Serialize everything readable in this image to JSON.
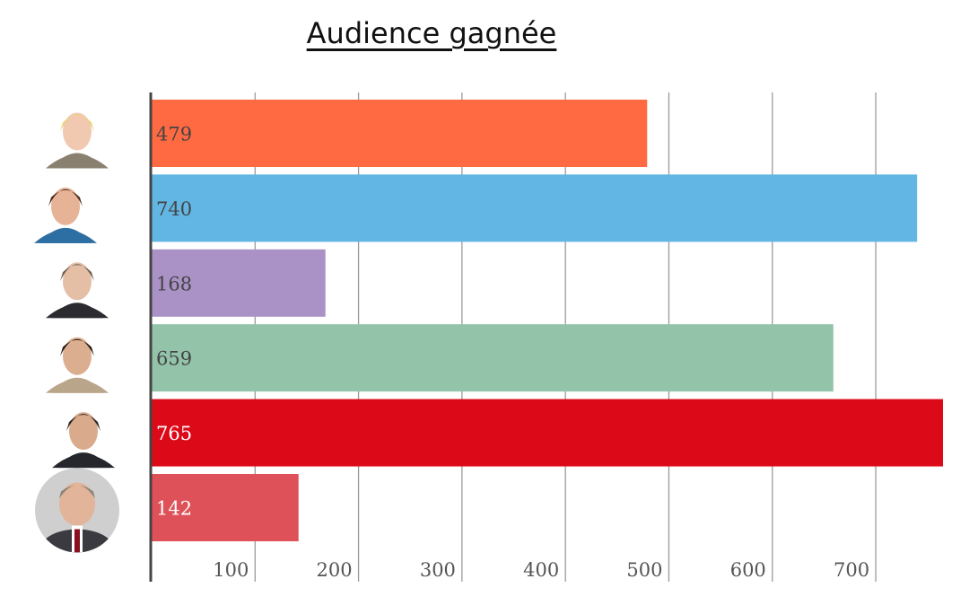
{
  "chart_data": {
    "type": "bar",
    "orientation": "horizontal",
    "title": "Audience gagnée",
    "xlabel": "",
    "ylabel": "",
    "xlim": [
      0,
      765
    ],
    "xticks": [
      100,
      200,
      300,
      400,
      500,
      600,
      700
    ],
    "grid": true,
    "legend": "none",
    "categories": [
      "",
      "",
      "",
      "",
      "",
      ""
    ],
    "values": [
      479,
      740,
      168,
      659,
      765,
      142
    ],
    "colors": [
      "#ff6a42",
      "#62b6e4",
      "#aa91c6",
      "#93c3a9",
      "#dc0a19",
      "#de5159"
    ],
    "label_colors": [
      "#444444",
      "#444444",
      "#444444",
      "#444444",
      "#ffffff",
      "#ffffff"
    ]
  },
  "avatars": [
    {
      "name": "avatar-1",
      "shirt": "#8a8070",
      "hair": "#e9d27a",
      "skin": "#f1c9b0",
      "bg": "#ffffff",
      "round": false
    },
    {
      "name": "avatar-2",
      "shirt": "#2e6fa3",
      "hair": "#4a2a1a",
      "skin": "#e7b397",
      "bg": "#ffffff",
      "round": false
    },
    {
      "name": "avatar-3",
      "shirt": "#2b2b30",
      "hair": "#6b5f52",
      "skin": "#e4bfa6",
      "bg": "#ffffff",
      "round": false
    },
    {
      "name": "avatar-4",
      "shirt": "#b9a589",
      "hair": "#1c1410",
      "skin": "#dcae90",
      "bg": "#ffffff",
      "round": false
    },
    {
      "name": "avatar-5",
      "shirt": "#26272d",
      "hair": "#2a2622",
      "skin": "#d9aa8c",
      "bg": "#ffffff",
      "round": false
    },
    {
      "name": "avatar-6",
      "shirt": "#3a3a40",
      "hair": "#8c8475",
      "skin": "#e2b49a",
      "bg": "#cfcfcf",
      "round": true
    }
  ]
}
